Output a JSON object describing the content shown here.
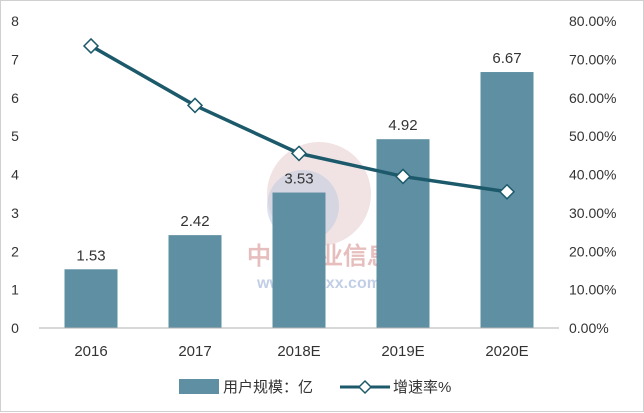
{
  "chart_data": {
    "type": "bar",
    "categories": [
      "2016",
      "2017",
      "2018E",
      "2019E",
      "2020E"
    ],
    "series": [
      {
        "name": "用户规模：亿",
        "type": "bar",
        "axis": "left",
        "values": [
          1.53,
          2.42,
          3.53,
          4.92,
          6.67
        ],
        "color": "#5f8fa3"
      },
      {
        "name": "增速率%",
        "type": "line",
        "axis": "right",
        "values": [
          73.5,
          58.0,
          45.5,
          39.5,
          35.5
        ],
        "color": "#1c5a6b"
      }
    ],
    "data_labels": [
      "1.53",
      "2.42",
      "3.53",
      "4.92",
      "6.67"
    ],
    "y_left": {
      "min": 0,
      "max": 8,
      "ticks": [
        "0",
        "1",
        "2",
        "3",
        "4",
        "5",
        "6",
        "7",
        "8"
      ]
    },
    "y_right": {
      "min": 0,
      "max": 80,
      "ticks": [
        "0.00%",
        "10.00%",
        "20.00%",
        "30.00%",
        "40.00%",
        "50.00%",
        "60.00%",
        "70.00%",
        "80.00%"
      ]
    },
    "grid": false,
    "legend": {
      "position": "bottom",
      "items": [
        "用户规模：亿",
        "增速率%"
      ]
    },
    "title": "",
    "xlabel": "",
    "ylabel": ""
  },
  "watermark": {
    "text_cn": "中国产业信息",
    "url": "www.chyxx.com"
  }
}
